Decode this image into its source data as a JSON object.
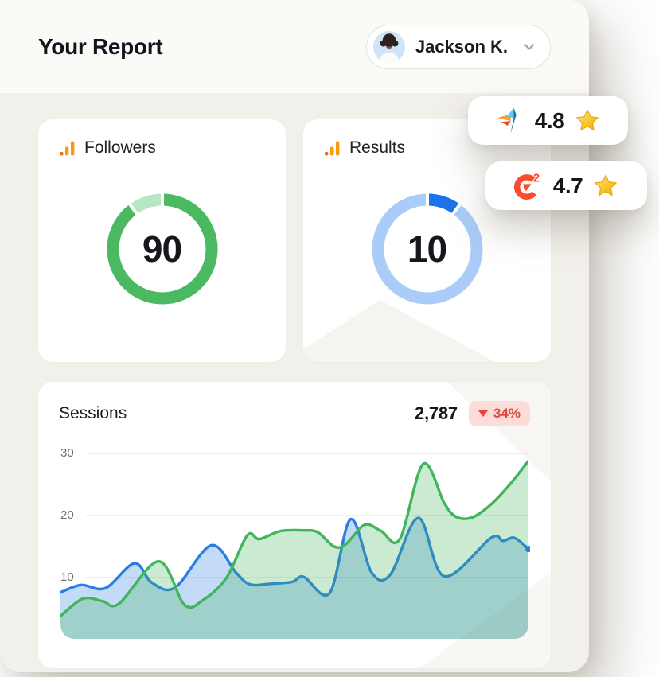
{
  "header": {
    "title": "Your Report",
    "user": {
      "name": "Jackson K.",
      "menu_icon": "chevron-down"
    }
  },
  "rating_badges": [
    {
      "platform": "Capterra",
      "icon": "capterra-logo-icon",
      "score": "4.8",
      "star": "gold-star"
    },
    {
      "platform": "G2",
      "icon": "g2-logo-icon",
      "logo_text": "2",
      "score": "4.7",
      "star": "gold-star"
    }
  ],
  "stat_cards": [
    {
      "label": "Followers",
      "icon": "analytics-bars-icon",
      "value": "90",
      "percent": 90,
      "arc_color": "#4AB961",
      "track_color": "#B7E6C2"
    },
    {
      "label": "Results",
      "icon": "analytics-bars-icon",
      "value": "10",
      "percent": 10,
      "arc_color": "#1A73E8",
      "track_color": "#ABCCF8"
    }
  ],
  "sessions": {
    "label": "Sessions",
    "value": "2,787",
    "change": {
      "value": "34%",
      "direction": "down",
      "color": "#E5463C",
      "bg": "#FBDCD9"
    }
  },
  "chart_data": {
    "type": "area",
    "title": "Sessions",
    "xlabel": "",
    "ylabel": "",
    "yticks": [
      10,
      20,
      30
    ],
    "ylim": [
      0,
      31
    ],
    "grid": "horizontal",
    "legend": "none",
    "x_unit": "percent-of-range",
    "series": [
      {
        "name": "sessions-blue",
        "line_color": "#2A7DE4",
        "fill_color": "rgba(42,125,228,0.28)",
        "end_dot": true,
        "points": [
          [
            0,
            7.6
          ],
          [
            4.4,
            8.8
          ],
          [
            9.6,
            8.3
          ],
          [
            15.8,
            12.3
          ],
          [
            19.5,
            9.2
          ],
          [
            24.5,
            8.4
          ],
          [
            32.2,
            15.2
          ],
          [
            37.5,
            10.8
          ],
          [
            40.5,
            8.9
          ],
          [
            45,
            9.0
          ],
          [
            49.5,
            9.3
          ],
          [
            52,
            10.1
          ],
          [
            57.5,
            7.5
          ],
          [
            62,
            19.4
          ],
          [
            66.5,
            10.8
          ],
          [
            70.5,
            10.5
          ],
          [
            76.5,
            19.6
          ],
          [
            82,
            10.2
          ],
          [
            92,
            16.4
          ],
          [
            94.5,
            15.9
          ],
          [
            97,
            16.4
          ],
          [
            100,
            14.6
          ]
        ]
      },
      {
        "name": "sessions-green",
        "line_color": "#41B45C",
        "fill_color": "rgba(65,180,92,0.28)",
        "end_dot": false,
        "points": [
          [
            0,
            3.8
          ],
          [
            4.8,
            6.6
          ],
          [
            9,
            6.2
          ],
          [
            12.5,
            5.8
          ],
          [
            21,
            12.6
          ],
          [
            26.5,
            5.6
          ],
          [
            30.5,
            6.4
          ],
          [
            35.5,
            10.0
          ],
          [
            39.9,
            16.8
          ],
          [
            42.5,
            16.2
          ],
          [
            47,
            17.5
          ],
          [
            52,
            17.6
          ],
          [
            55,
            17.3
          ],
          [
            58.5,
            15.0
          ],
          [
            61,
            15.4
          ],
          [
            65,
            18.5
          ],
          [
            68.5,
            17.5
          ],
          [
            72.5,
            16.2
          ],
          [
            77.5,
            28.3
          ],
          [
            82,
            22.0
          ],
          [
            84.5,
            19.8
          ],
          [
            88,
            19.7
          ],
          [
            92,
            21.8
          ],
          [
            96,
            25.0
          ],
          [
            100,
            28.8
          ]
        ]
      }
    ]
  }
}
